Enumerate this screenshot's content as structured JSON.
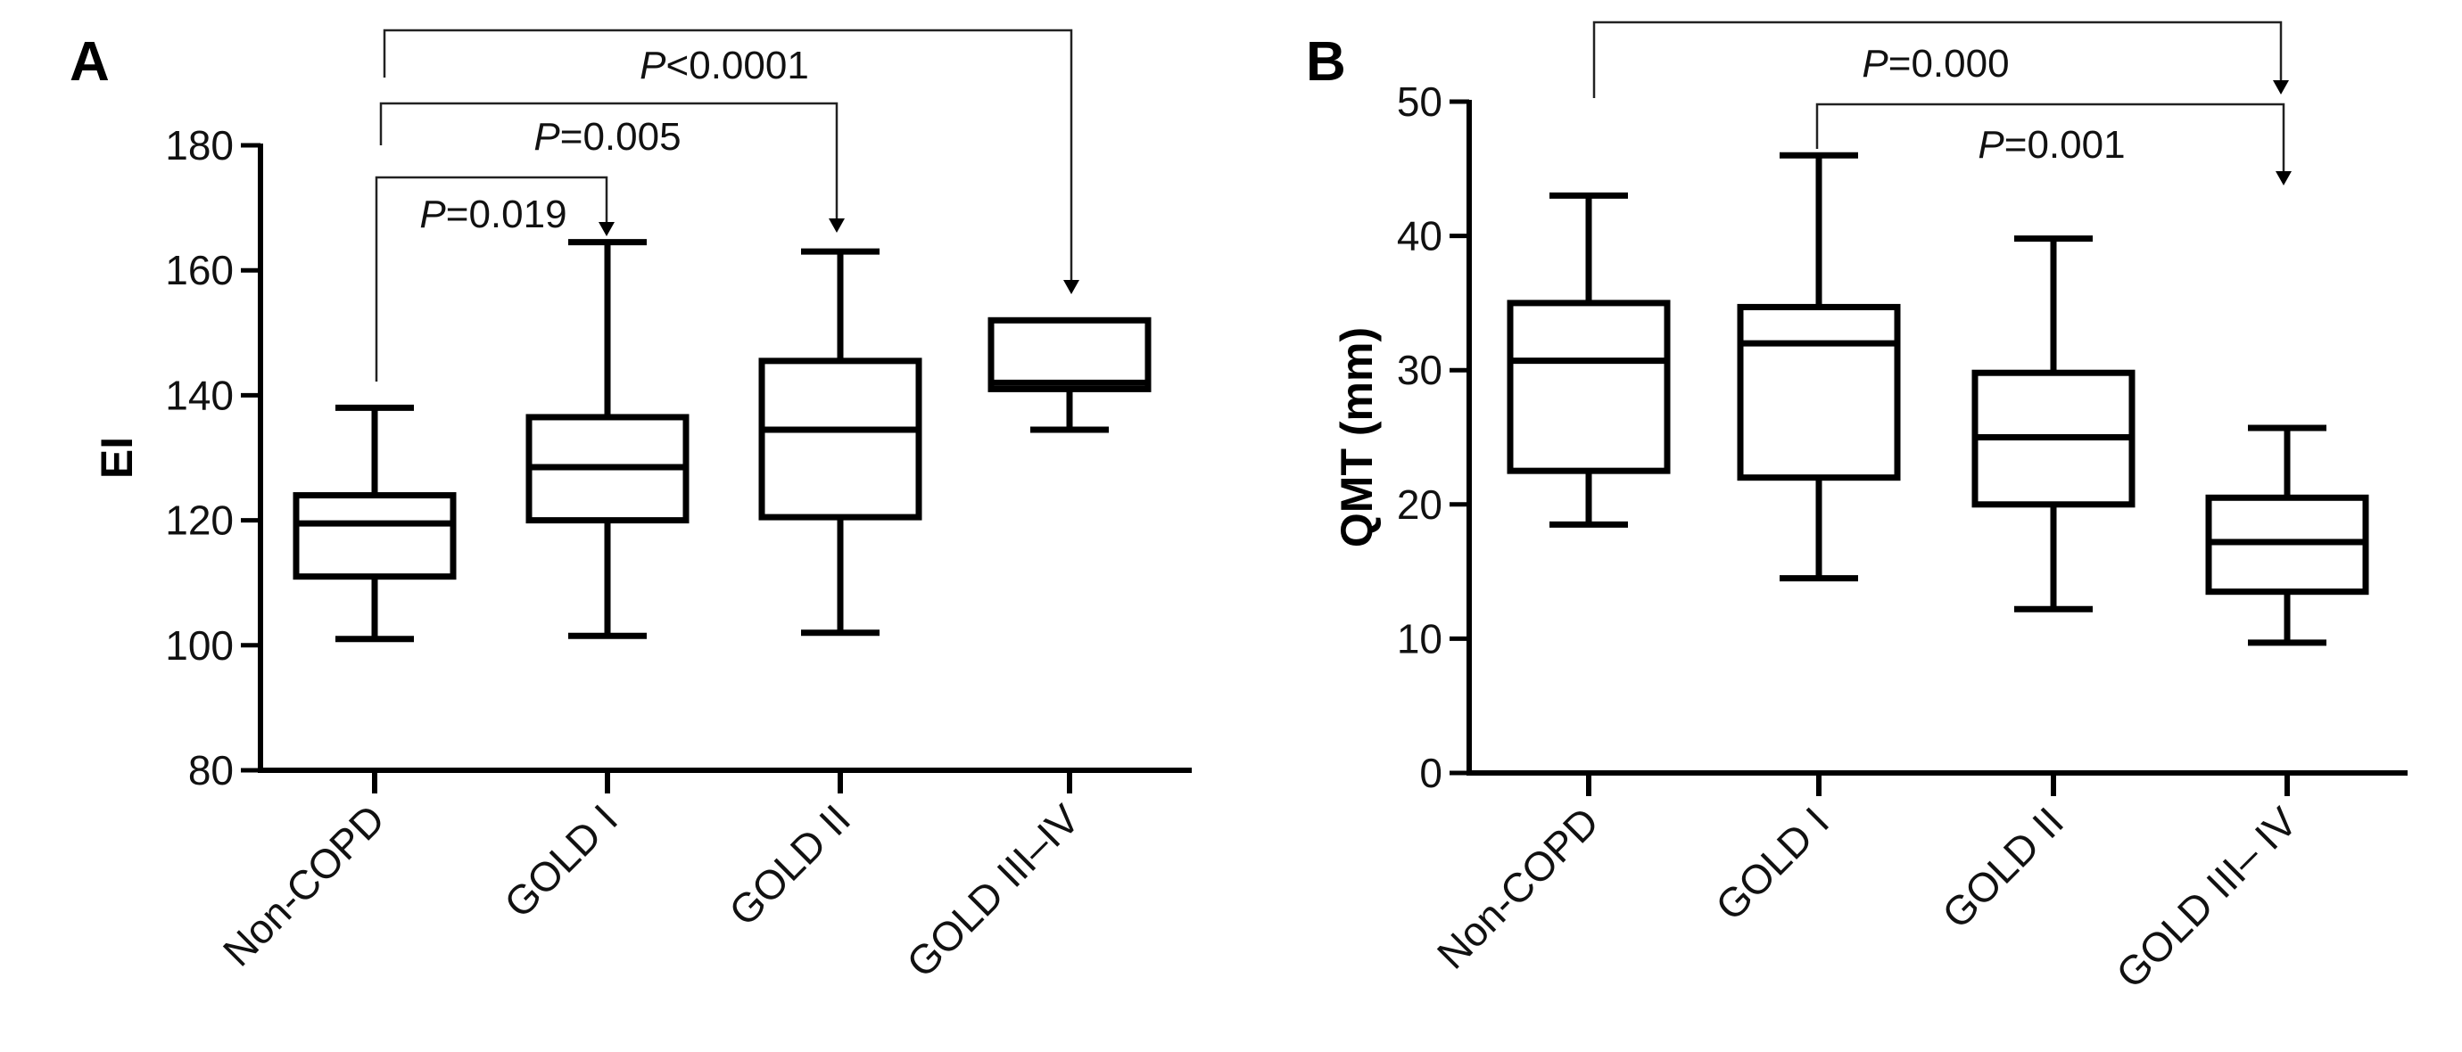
{
  "chart_data": [
    {
      "panel_label": "A",
      "type": "boxplot",
      "ylabel": "EI",
      "xlabel": "",
      "ylim": [
        80,
        180
      ],
      "yticks": [
        80,
        100,
        120,
        140,
        160,
        180
      ],
      "categories": [
        "Non-COPD",
        "GOLD I",
        "GOLD II",
        "GOLD III–IV"
      ],
      "boxes": [
        {
          "min": 101,
          "q1": 111,
          "median": 119.5,
          "q3": 124,
          "max": 138
        },
        {
          "min": 101.5,
          "q1": 120,
          "median": 128.5,
          "q3": 136.5,
          "max": 164.5
        },
        {
          "min": 102,
          "q1": 120.5,
          "median": 134.5,
          "q3": 145.5,
          "max": 163
        },
        {
          "min": 134.5,
          "q1": 141,
          "median": 142,
          "q3": 152,
          "max": 152
        }
      ],
      "comparisons": [
        {
          "from": 0,
          "to": 1,
          "label_prefix": "P",
          "label_rest": "=0.019"
        },
        {
          "from": 0,
          "to": 2,
          "label_prefix": "P",
          "label_rest": "=0.005"
        },
        {
          "from": 0,
          "to": 3,
          "label_prefix": "P",
          "label_rest": "<0.0001"
        }
      ],
      "grid": false
    },
    {
      "panel_label": "B",
      "type": "boxplot",
      "ylabel": "QMT (mm)",
      "xlabel": "",
      "ylim": [
        0,
        50
      ],
      "yticks": [
        0,
        10,
        20,
        30,
        40,
        50
      ],
      "categories": [
        "Non-COPD",
        "GOLD I",
        "GOLD II",
        "GOLD III– IV"
      ],
      "boxes": [
        {
          "min": 18.5,
          "q1": 22.5,
          "median": 30.7,
          "q3": 35,
          "max": 43
        },
        {
          "min": 14.5,
          "q1": 22,
          "median": 32,
          "q3": 34.7,
          "max": 46
        },
        {
          "min": 12.2,
          "q1": 20,
          "median": 25,
          "q3": 29.8,
          "max": 39.8
        },
        {
          "min": 9.7,
          "q1": 13.5,
          "median": 17.2,
          "q3": 20.5,
          "max": 25.7
        }
      ],
      "comparisons": [
        {
          "from": 0,
          "to": 3,
          "label_prefix": "P",
          "label_rest": "=0.000"
        },
        {
          "from": 1,
          "to": 3,
          "label_prefix": "P",
          "label_rest": "=0.001"
        }
      ],
      "grid": false
    }
  ]
}
